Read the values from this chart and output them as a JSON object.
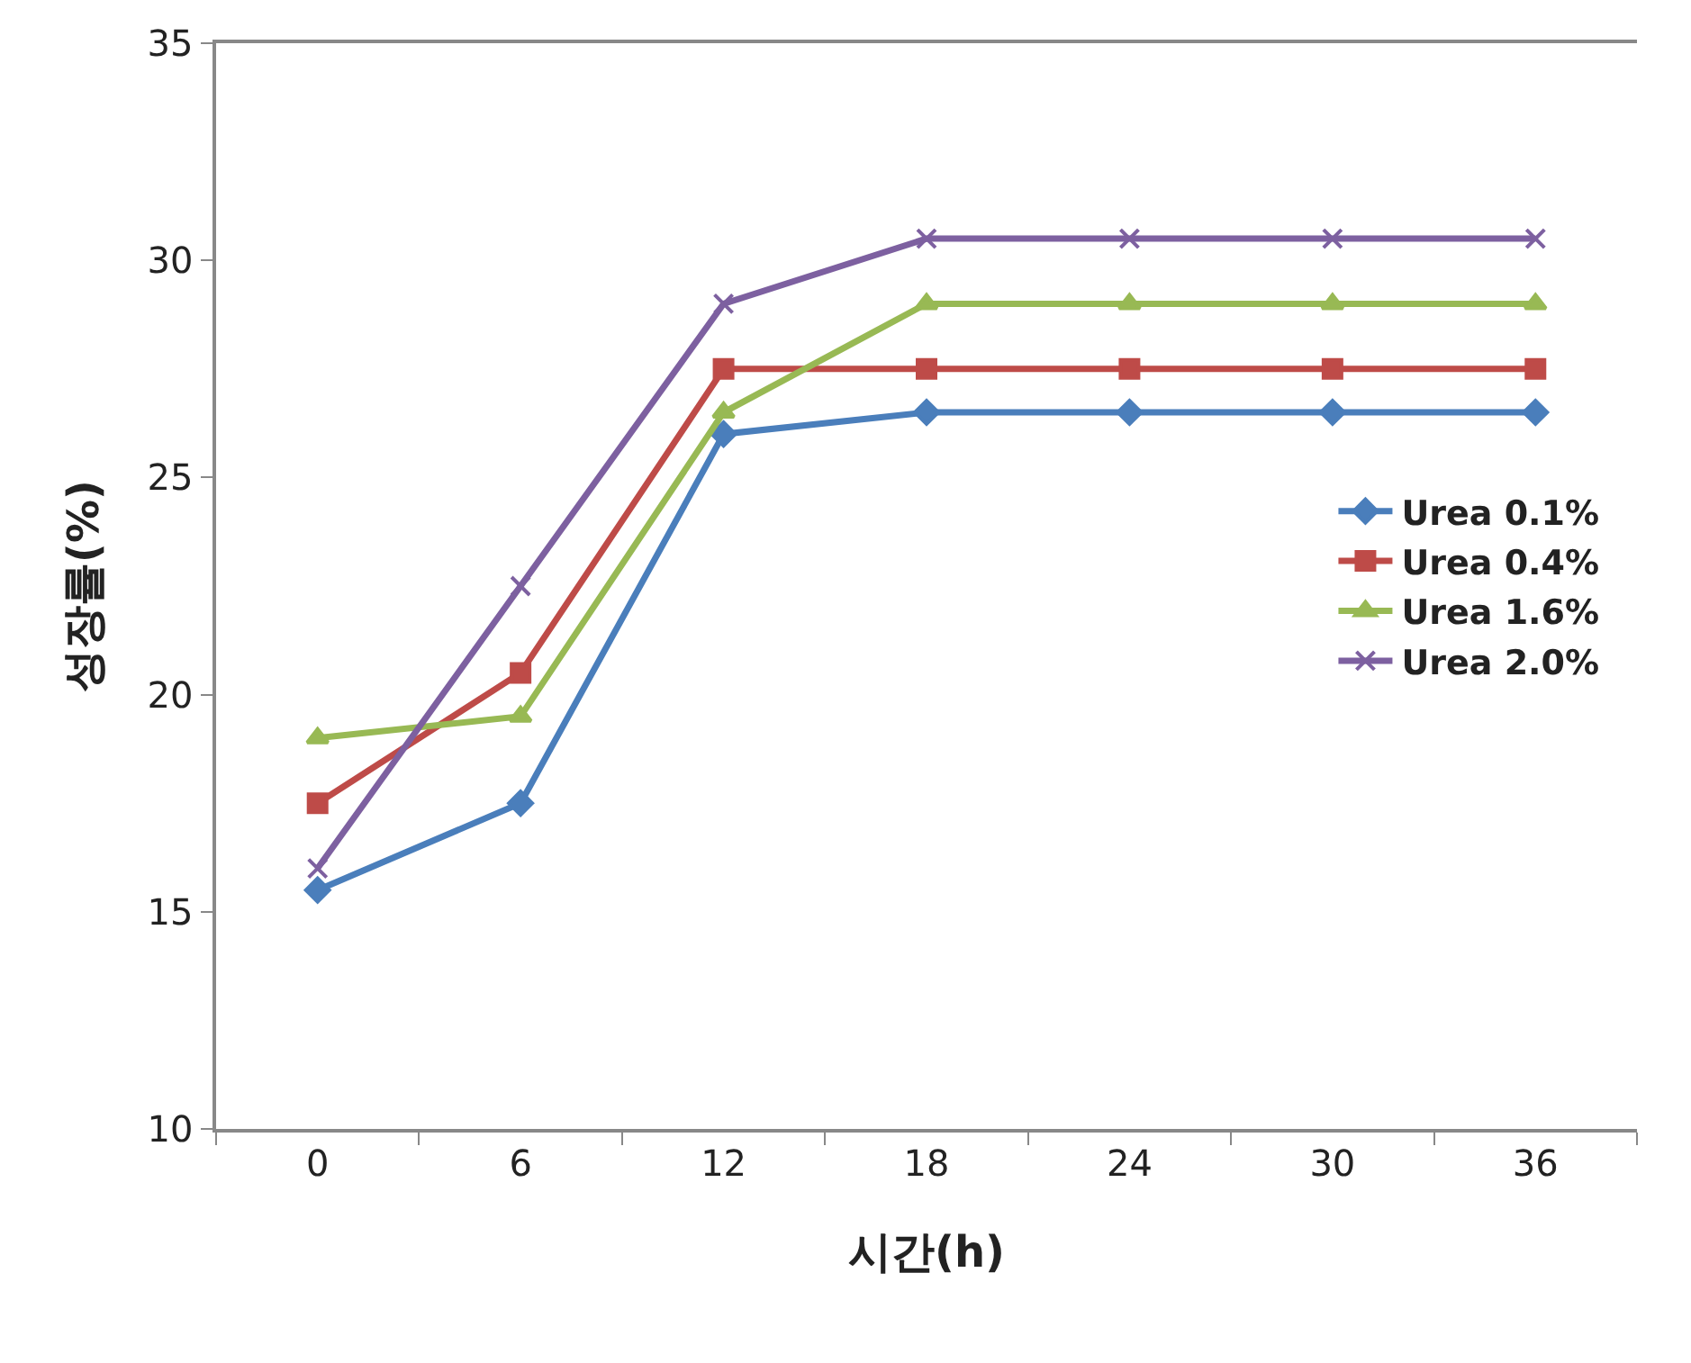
{
  "chart_data": {
    "type": "line",
    "xlabel": "시간(h)",
    "ylabel": "성장률(%)",
    "categories": [
      "0",
      "6",
      "12",
      "18",
      "24",
      "30",
      "36"
    ],
    "ylim": [
      10,
      35
    ],
    "yticks": [
      10,
      15,
      20,
      25,
      30,
      35
    ],
    "legend": "right",
    "series": [
      {
        "name": "Urea 0.1%",
        "color": "#4a7ebb",
        "marker": "diamond",
        "values": [
          15.5,
          17.5,
          26,
          26.5,
          26.5,
          26.5,
          26.5
        ]
      },
      {
        "name": "Urea 0.4%",
        "color": "#be4b48",
        "marker": "square",
        "values": [
          17.5,
          20.5,
          27.5,
          27.5,
          27.5,
          27.5,
          27.5
        ]
      },
      {
        "name": "Urea 1.6%",
        "color": "#98b954",
        "marker": "triangle",
        "values": [
          19,
          19.5,
          26.5,
          29,
          29,
          29,
          29
        ]
      },
      {
        "name": "Urea 2.0%",
        "color": "#7d60a0",
        "marker": "cross",
        "values": [
          16,
          22.5,
          29,
          30.5,
          30.5,
          30.5,
          30.5
        ]
      }
    ]
  }
}
